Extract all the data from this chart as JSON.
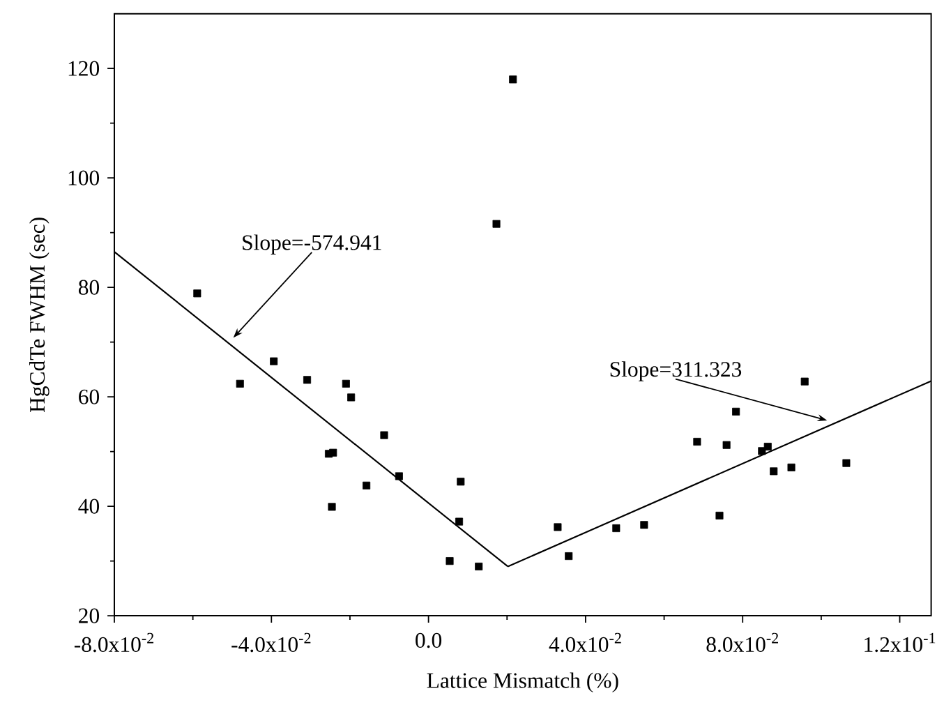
{
  "chart_data": {
    "type": "scatter",
    "xlabel": "Lattice Mismatch (%)",
    "ylabel": "HgCdTe FWHM (sec)",
    "xlim": [
      -0.08,
      0.128
    ],
    "ylim": [
      20,
      130
    ],
    "xticks": [
      {
        "value": -0.08,
        "label": "-8.0x10$^{-2}$"
      },
      {
        "value": -0.04,
        "label": "-4.0x10$^{-2}$"
      },
      {
        "value": 0,
        "label": "0.0"
      },
      {
        "value": 0.04,
        "label": "4.0x10$^{-2}$"
      },
      {
        "value": 0.08,
        "label": "8.0x10$^{-2}$"
      },
      {
        "value": 0.12,
        "label": "1.2x10$^{-1}$"
      }
    ],
    "yticks": [
      20,
      40,
      60,
      80,
      100,
      120
    ],
    "grid": false,
    "series": [
      {
        "color": "#000000",
        "marker": "square",
        "x": [
          -0.0589,
          -0.048,
          -0.0394,
          -0.0309,
          -0.021,
          -0.0197,
          -0.0113,
          -0.0254,
          -0.0243,
          -0.0158,
          -0.0075,
          -0.0246,
          0.0082,
          0.0078,
          0.0054,
          0.0128,
          0.0173,
          0.0215,
          0.0329,
          0.0357,
          0.0478,
          0.0549,
          0.0741,
          0.0684,
          0.0759,
          0.0783,
          0.0849,
          0.0864,
          0.0879,
          0.0924,
          0.0958,
          0.1064
        ],
        "values": [
          78.9,
          62.4,
          66.5,
          63.1,
          62.4,
          59.9,
          53.0,
          49.6,
          49.8,
          43.8,
          45.5,
          39.9,
          44.5,
          37.2,
          30.0,
          29.0,
          91.6,
          118.0,
          36.2,
          30.9,
          36.0,
          36.6,
          38.3,
          51.8,
          51.2,
          57.3,
          50.1,
          50.9,
          46.4,
          47.1,
          62.8,
          47.9
        ]
      },
      {
        "type": "line",
        "color": "#000000",
        "x": [
          -0.08,
          0.0202
        ],
        "values": [
          86.5,
          29.0
        ]
      },
      {
        "type": "line",
        "color": "#000000",
        "x": [
          0.0202,
          0.128
        ],
        "values": [
          29.0,
          62.9
        ]
      }
    ],
    "annotations": [
      {
        "text": "Slope=-574.941",
        "x": -0.0497,
        "y": 70.8
      },
      {
        "text": "Slope=311.323",
        "x": 0.1015,
        "y": 55.7
      }
    ]
  }
}
